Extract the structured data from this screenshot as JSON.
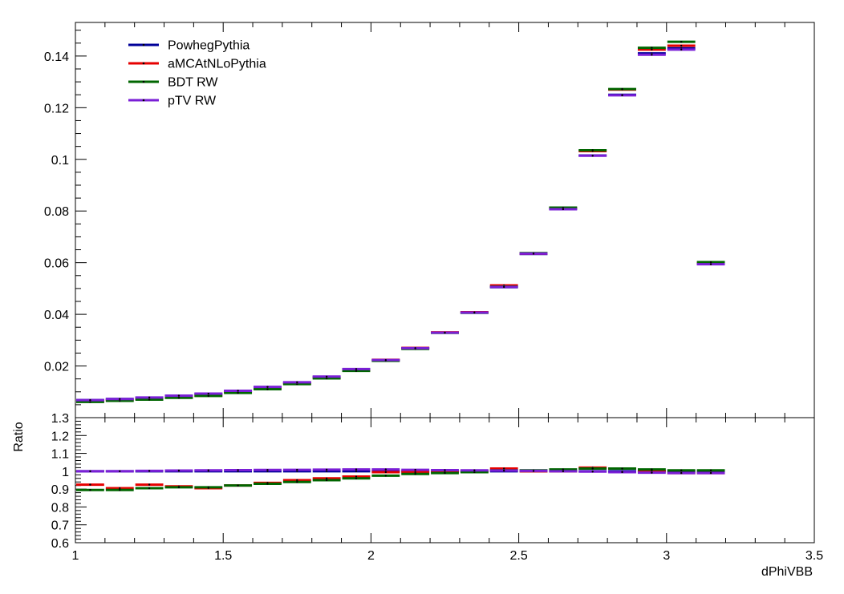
{
  "chart_data": [
    {
      "type": "line",
      "panel": "main",
      "bin_edges": [
        1.0,
        1.1,
        1.2,
        1.3,
        1.4,
        1.5,
        1.6,
        1.7,
        1.8,
        1.9,
        2.0,
        2.1,
        2.2,
        2.3,
        2.4,
        2.5,
        2.6,
        2.7,
        2.8,
        2.9,
        3.0,
        3.1,
        3.2
      ],
      "series": [
        {
          "name": "PowhegPythia",
          "color": "#000099",
          "values": [
            0.0068,
            0.0072,
            0.0077,
            0.0084,
            0.0092,
            0.0103,
            0.0118,
            0.0136,
            0.0158,
            0.0187,
            0.0222,
            0.0268,
            0.0329,
            0.0406,
            0.0505,
            0.0634,
            0.0808,
            0.1015,
            0.125,
            0.141,
            0.143,
            0.0595
          ]
        },
        {
          "name": "aMCAtNLoPythia",
          "color": "#e60000",
          "values": [
            0.0063,
            0.0068,
            0.0073,
            0.0079,
            0.0085,
            0.0098,
            0.0113,
            0.0132,
            0.0154,
            0.0184,
            0.0224,
            0.027,
            0.033,
            0.0408,
            0.0512,
            0.0635,
            0.0812,
            0.1032,
            0.127,
            0.1425,
            0.144,
            0.0598
          ]
        },
        {
          "name": "BDT RW",
          "color": "#006600",
          "values": [
            0.0061,
            0.0065,
            0.007,
            0.0077,
            0.0084,
            0.0096,
            0.011,
            0.013,
            0.0152,
            0.0181,
            0.022,
            0.0266,
            0.0328,
            0.0406,
            0.0507,
            0.0637,
            0.0813,
            0.1035,
            0.1272,
            0.1432,
            0.1455,
            0.0602
          ]
        },
        {
          "name": "pTV RW",
          "color": "#7a1fd6",
          "values": [
            0.0068,
            0.0072,
            0.0078,
            0.0085,
            0.0093,
            0.0104,
            0.0119,
            0.0137,
            0.0159,
            0.0188,
            0.0223,
            0.0269,
            0.0329,
            0.0407,
            0.0506,
            0.0635,
            0.0807,
            0.1014,
            0.1248,
            0.1405,
            0.1425,
            0.0594
          ]
        }
      ],
      "xlim": [
        1,
        3.5
      ],
      "ylim": [
        0.0,
        0.153
      ],
      "xticks": [
        "1",
        "1.5",
        "2",
        "2.5",
        "3",
        "3.5"
      ],
      "yticks": [
        "0.02",
        "0.04",
        "0.06",
        "0.08",
        "0.1",
        "0.12",
        "0.14"
      ],
      "legend": "top-left"
    },
    {
      "type": "line",
      "panel": "ratio",
      "ylabel": "Ratio",
      "xlabel": "dPhiVBB",
      "bin_edges": [
        1.0,
        1.1,
        1.2,
        1.3,
        1.4,
        1.5,
        1.6,
        1.7,
        1.8,
        1.9,
        2.0,
        2.1,
        2.2,
        2.3,
        2.4,
        2.5,
        2.6,
        2.7,
        2.8,
        2.9,
        3.0,
        3.1,
        3.2
      ],
      "series": [
        {
          "name": "PowhegPythia",
          "color": "#000099",
          "values": [
            1.0,
            1.0,
            1.0,
            1.0,
            1.0,
            1.0,
            1.0,
            1.0,
            1.0,
            1.0,
            1.0,
            1.0,
            1.0,
            1.0,
            1.0,
            1.0,
            1.0,
            1.0,
            1.0,
            1.0,
            1.0,
            1.0
          ]
        },
        {
          "name": "aMCAtNLoPythia",
          "color": "#e60000",
          "values": [
            0.925,
            0.905,
            0.925,
            0.915,
            0.905,
            0.92,
            0.935,
            0.95,
            0.96,
            0.97,
            0.995,
            0.995,
            1.0,
            1.0,
            1.015,
            1.0,
            1.0,
            1.02,
            1.015,
            1.0,
            0.99,
            0.99
          ]
        },
        {
          "name": "BDT RW",
          "color": "#006600",
          "values": [
            0.895,
            0.895,
            0.905,
            0.91,
            0.91,
            0.92,
            0.93,
            0.94,
            0.95,
            0.96,
            0.975,
            0.985,
            0.99,
            0.995,
            1.005,
            1.005,
            1.01,
            1.015,
            1.015,
            1.01,
            1.005,
            1.005
          ]
        },
        {
          "name": "pTV RW",
          "color": "#7a1fd6",
          "values": [
            1.0,
            1.0,
            1.002,
            1.004,
            1.005,
            1.006,
            1.007,
            1.008,
            1.009,
            1.01,
            1.01,
            1.008,
            1.006,
            1.005,
            1.004,
            1.002,
            1.0,
            0.998,
            0.995,
            0.992,
            0.99,
            0.99
          ]
        }
      ],
      "xlim": [
        1,
        3.5
      ],
      "ylim": [
        0.6,
        1.3
      ],
      "xticks": [
        "1",
        "1.5",
        "2",
        "2.5",
        "3",
        "3.5"
      ],
      "yticks": [
        "0.6",
        "0.7",
        "0.8",
        "0.9",
        "1",
        "1.1",
        "1.2",
        "1.3"
      ]
    }
  ],
  "labels": {
    "ratio_ylabel": "Ratio",
    "xlabel": "dPhiVBB"
  }
}
